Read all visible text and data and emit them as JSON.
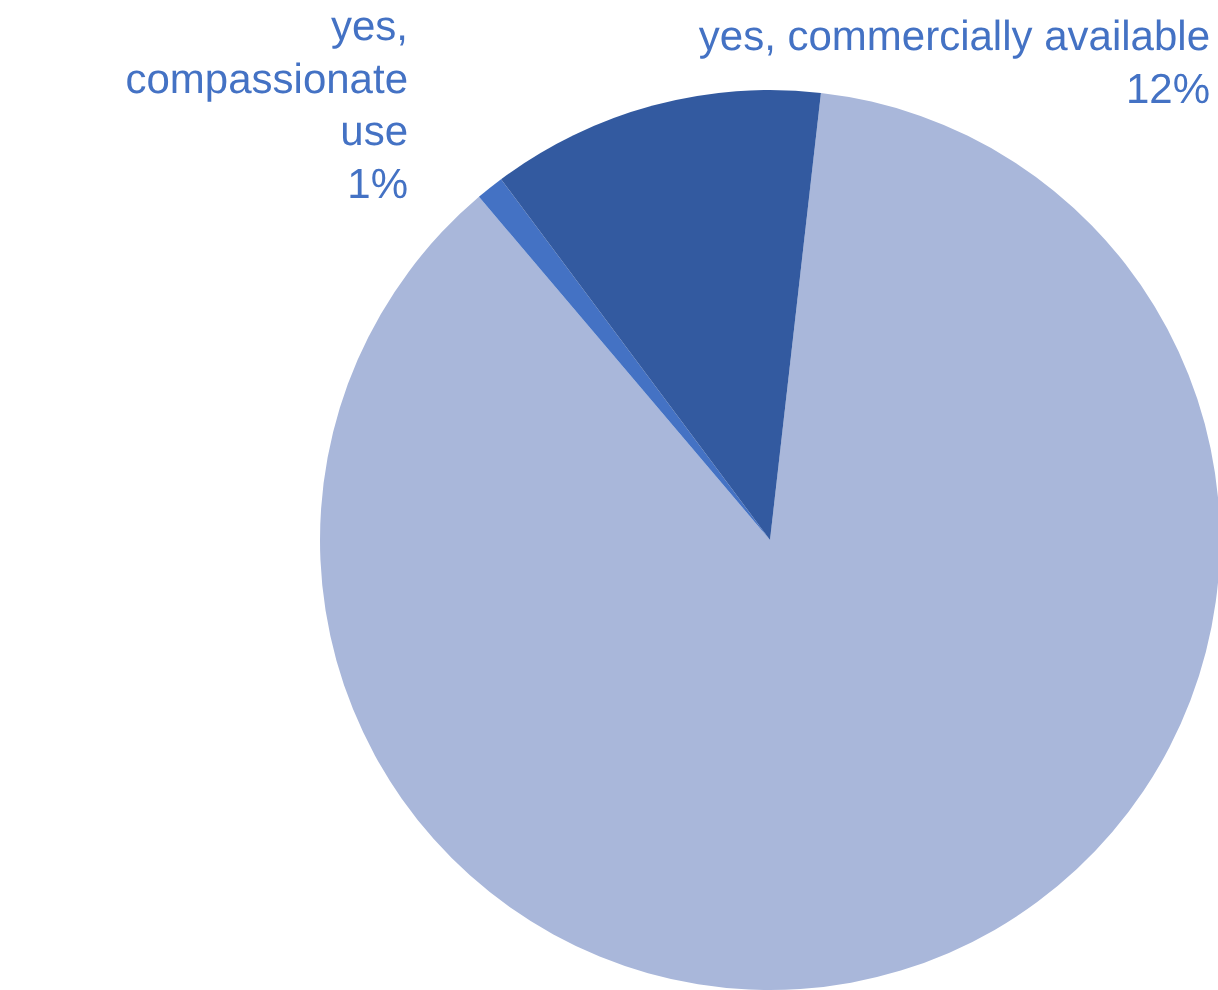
{
  "chart_data": {
    "type": "pie",
    "categories": [
      null,
      "yes, compassionate use",
      "yes, commercially available"
    ],
    "values": [
      87,
      1,
      12
    ],
    "colors": [
      "#a9b7da",
      "#4472c4",
      "#335aa0"
    ],
    "value_labels": [
      null,
      "1%",
      "12%"
    ]
  }
}
